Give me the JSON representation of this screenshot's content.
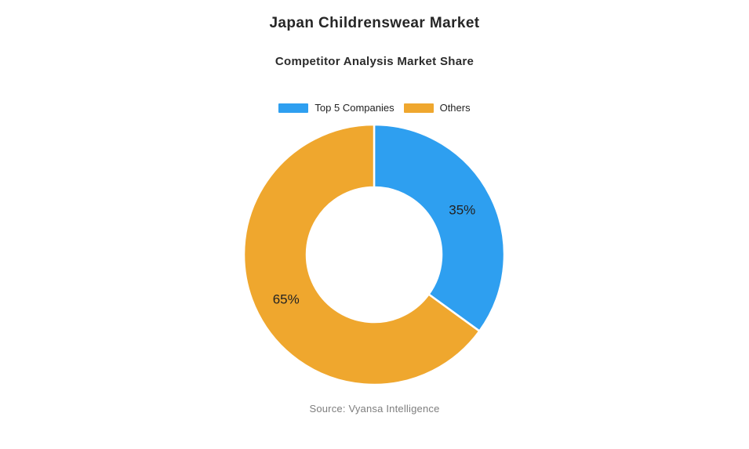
{
  "page": {
    "title": "Japan Childrenswear Market",
    "subtitle": "Competitor Analysis Market Share",
    "source": "Source: Vyansa Intelligence",
    "background_color": "#ffffff"
  },
  "chart_data": {
    "type": "pie",
    "subtype": "donut",
    "title": "Japan Childrenswear Market",
    "subtitle": "Competitor Analysis Market Share",
    "labels": [
      "Top 5 Companies",
      "Others"
    ],
    "values": [
      35,
      65
    ],
    "value_labels": [
      "35%",
      "65%"
    ],
    "colors": [
      "#2E9FF0",
      "#EFA72E"
    ],
    "value_label_color": "#222222",
    "slice_border_color": "#ffffff",
    "legend_position": "top",
    "start_angle_deg": 0,
    "direction": "clockwise",
    "inner_radius_ratio": 0.52,
    "source": "Source: Vyansa Intelligence"
  }
}
